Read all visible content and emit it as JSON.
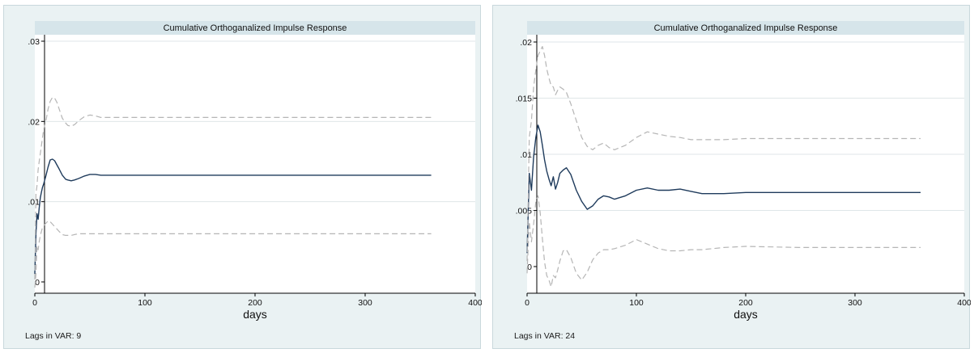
{
  "chart_data": [
    {
      "type": "line",
      "title": "Cumulative Orthoganalized Impulse Response",
      "xlabel": "days",
      "ylabel": "",
      "xlim": [
        0,
        400
      ],
      "ylim": [
        0,
        0.03
      ],
      "x_ticks": [
        "0",
        "100",
        "200",
        "300",
        "400"
      ],
      "y_ticks": [
        "0",
        ".01",
        ".02",
        ".03"
      ],
      "grid": true,
      "note": "Lags in VAR: 9",
      "colors": {
        "irf": "#1f3b5c",
        "ci": "#b5b5b5"
      },
      "x": [
        0,
        1,
        2,
        3,
        4,
        5,
        6,
        7,
        8,
        10,
        12,
        14,
        16,
        18,
        20,
        22,
        25,
        28,
        30,
        33,
        36,
        40,
        45,
        50,
        55,
        60,
        70,
        80,
        100,
        150,
        200,
        250,
        300,
        360
      ],
      "series": [
        {
          "role": "irf",
          "values": [
            0.001,
            0.006,
            0.0085,
            0.0078,
            0.0092,
            0.0105,
            0.0112,
            0.0118,
            0.0122,
            0.0132,
            0.0143,
            0.0152,
            0.0153,
            0.0151,
            0.0146,
            0.0141,
            0.0133,
            0.0128,
            0.0127,
            0.0126,
            0.0127,
            0.0129,
            0.0132,
            0.0134,
            0.0134,
            0.0133,
            0.0133,
            0.0133,
            0.0133,
            0.0133,
            0.0133,
            0.0133,
            0.0133,
            0.0133
          ]
        },
        {
          "role": "ci-upper",
          "values": [
            0.0003,
            0.011,
            0.012,
            0.014,
            0.015,
            0.016,
            0.017,
            0.018,
            0.019,
            0.02,
            0.0215,
            0.0225,
            0.023,
            0.0229,
            0.0224,
            0.0216,
            0.0204,
            0.0198,
            0.0195,
            0.0194,
            0.0196,
            0.0201,
            0.0206,
            0.0208,
            0.0207,
            0.0205,
            0.0205,
            0.0205,
            0.0205,
            0.0205,
            0.0205,
            0.0205,
            0.0205,
            0.0205
          ]
        },
        {
          "role": "ci-lower",
          "values": [
            -0.0007,
            0.001,
            0.0045,
            0.004,
            0.005,
            0.0058,
            0.0063,
            0.0068,
            0.007,
            0.0073,
            0.0076,
            0.0075,
            0.0072,
            0.0069,
            0.0066,
            0.0063,
            0.0059,
            0.0058,
            0.0058,
            0.0058,
            0.0059,
            0.006,
            0.006,
            0.006,
            0.006,
            0.006,
            0.006,
            0.006,
            0.006,
            0.006,
            0.006,
            0.006,
            0.006,
            0.006
          ]
        }
      ]
    },
    {
      "type": "line",
      "title": "Cumulative Orthoganalized Impulse Response",
      "xlabel": "days",
      "ylabel": "",
      "xlim": [
        0,
        400
      ],
      "ylim": [
        0,
        0.02
      ],
      "x_ticks": [
        "0",
        "100",
        "200",
        "300",
        "400"
      ],
      "y_ticks": [
        "0",
        ".005",
        ".01",
        ".015",
        ".02"
      ],
      "grid": true,
      "note": "Lags in VAR: 24",
      "colors": {
        "irf": "#1f3b5c",
        "ci": "#b5b5b5"
      },
      "x": [
        0,
        2,
        4,
        6,
        8,
        10,
        12,
        14,
        16,
        18,
        20,
        22,
        24,
        26,
        28,
        30,
        33,
        36,
        40,
        45,
        50,
        55,
        60,
        65,
        70,
        75,
        80,
        90,
        100,
        110,
        120,
        130,
        140,
        150,
        160,
        180,
        200,
        250,
        300,
        360
      ],
      "series": [
        {
          "role": "irf",
          "values": [
            0.0012,
            0.0083,
            0.0068,
            0.0098,
            0.0115,
            0.0126,
            0.012,
            0.0108,
            0.0095,
            0.0085,
            0.0078,
            0.0072,
            0.008,
            0.0069,
            0.0075,
            0.0083,
            0.0086,
            0.0088,
            0.0082,
            0.0068,
            0.0058,
            0.0051,
            0.0054,
            0.006,
            0.0063,
            0.0062,
            0.006,
            0.0063,
            0.0068,
            0.007,
            0.0068,
            0.0068,
            0.0069,
            0.0067,
            0.0065,
            0.0065,
            0.0066,
            0.0066,
            0.0066,
            0.0066
          ]
        },
        {
          "role": "ci-upper",
          "values": [
            0.0005,
            0.0115,
            0.013,
            0.016,
            0.0175,
            0.0188,
            0.0192,
            0.0196,
            0.0188,
            0.0176,
            0.0168,
            0.0161,
            0.016,
            0.0153,
            0.0157,
            0.016,
            0.0158,
            0.0155,
            0.0145,
            0.013,
            0.0115,
            0.0107,
            0.0104,
            0.0108,
            0.011,
            0.0106,
            0.0104,
            0.0108,
            0.0115,
            0.012,
            0.0118,
            0.0116,
            0.0115,
            0.0113,
            0.0113,
            0.0113,
            0.0114,
            0.0114,
            0.0114,
            0.0114
          ]
        },
        {
          "role": "ci-lower",
          "values": [
            -0.0006,
            0.004,
            0.0022,
            0.0038,
            0.0058,
            0.0063,
            0.0048,
            0.0025,
            0.0004,
            -0.0008,
            -0.0012,
            -0.0018,
            -0.0008,
            -0.001,
            -0.0003,
            0.0005,
            0.0014,
            0.0015,
            0.0008,
            -0.0006,
            -0.0012,
            -0.0005,
            0.0006,
            0.0012,
            0.0015,
            0.0015,
            0.0016,
            0.0019,
            0.0024,
            0.002,
            0.0016,
            0.0014,
            0.0014,
            0.0015,
            0.0015,
            0.0017,
            0.0018,
            0.0017,
            0.0017,
            0.0017
          ]
        }
      ]
    }
  ]
}
